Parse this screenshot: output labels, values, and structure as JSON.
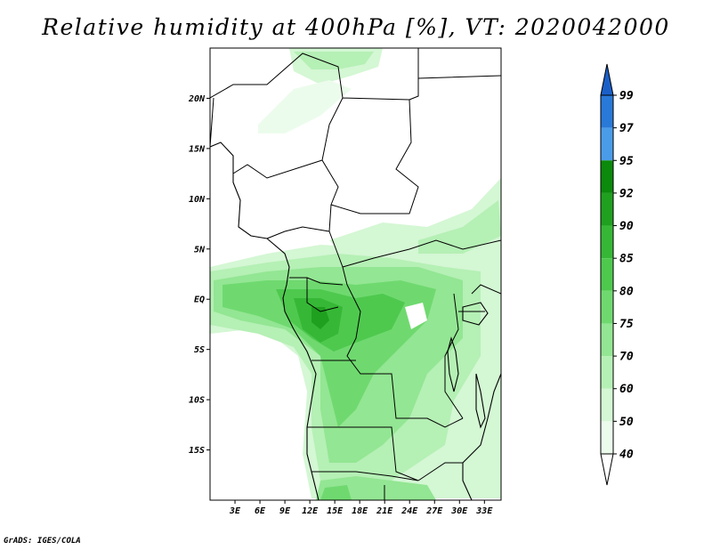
{
  "title": "Relative humidity at 400hPa [%], VT: 2020042000",
  "footer": "GrADS: IGES/COLA",
  "map": {
    "lon_range": [
      0,
      35
    ],
    "lat_range": [
      -20,
      25
    ],
    "lat_ticks": [
      "20N",
      "15N",
      "10N",
      "5N",
      "EQ",
      "5S",
      "10S",
      "15S"
    ],
    "lat_values": [
      20,
      15,
      10,
      5,
      0,
      -5,
      -10,
      -15
    ],
    "lon_ticks": [
      "3E",
      "6E",
      "9E",
      "12E",
      "15E",
      "18E",
      "21E",
      "24E",
      "27E",
      "30E",
      "33E"
    ],
    "lon_values": [
      3,
      6,
      9,
      12,
      15,
      18,
      21,
      24,
      27,
      30,
      33
    ]
  },
  "colorbar": {
    "levels": [
      "99",
      "97",
      "95",
      "92",
      "90",
      "85",
      "80",
      "75",
      "70",
      "60",
      "50",
      "40"
    ],
    "colors": [
      "#1a5fc8",
      "#2979d8",
      "#4a9ce8",
      "#0b8a0b",
      "#1fa01f",
      "#36b836",
      "#4ec94e",
      "#6fd96f",
      "#93e693",
      "#b5f0b5",
      "#d4f7d4",
      "#ecfcec"
    ],
    "below_color": "#ffffff",
    "above_color": "#1a5fc8"
  }
}
